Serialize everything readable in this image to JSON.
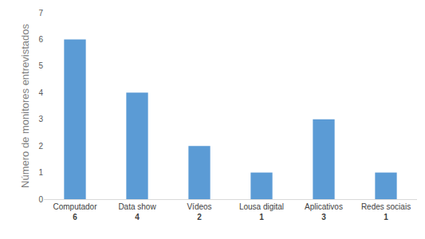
{
  "chart_data": {
    "type": "bar",
    "y_label": "Número de monitores entrevistados",
    "categories": [
      "Computador",
      "Data show",
      "Vídeos",
      "Lousa digital",
      "Aplicativos",
      "Redes sociais"
    ],
    "values": [
      6,
      4,
      2,
      1,
      3,
      1
    ],
    "color": "#5b9bd5",
    "ylim": [
      0,
      7
    ],
    "yticks": [
      0,
      1,
      2,
      3,
      4,
      5,
      6,
      7
    ],
    "grid": false,
    "data_labels": true
  }
}
